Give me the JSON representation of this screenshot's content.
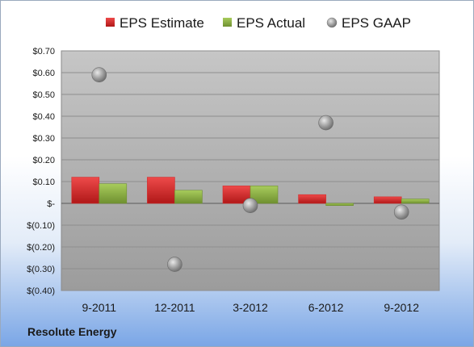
{
  "chart_data": {
    "type": "bar",
    "categories": [
      "9-2011",
      "12-2011",
      "3-2012",
      "6-2012",
      "9-2012"
    ],
    "series": [
      {
        "name": "EPS Estimate",
        "kind": "bar",
        "values": [
          0.12,
          0.12,
          0.08,
          0.04,
          0.03
        ]
      },
      {
        "name": "EPS Actual",
        "kind": "bar",
        "values": [
          0.09,
          0.06,
          0.08,
          -0.01,
          0.02
        ]
      },
      {
        "name": "EPS GAAP",
        "kind": "scatter",
        "values": [
          0.59,
          -0.28,
          -0.01,
          0.37,
          -0.04
        ]
      }
    ],
    "ylim": [
      -0.4,
      0.7
    ],
    "yticks": [
      0.7,
      0.6,
      0.5,
      0.4,
      0.3,
      0.2,
      0.1,
      0.0,
      -0.1,
      -0.2,
      -0.3,
      -0.4
    ],
    "ytick_labels": [
      "$0.70",
      "$0.60",
      "$0.50",
      "$0.40",
      "$0.30",
      "$0.20",
      "$0.10",
      "$-",
      "$(0.10)",
      "$(0.20)",
      "$(0.30)",
      "$(0.40)"
    ],
    "legend": "top",
    "grid": true,
    "colors": {
      "estimate": "#d42a2a",
      "actual": "#8cb040",
      "gaap": "#a0a0a0",
      "plot_bg": "#b3b3b3"
    }
  },
  "footer": {
    "company": "Resolute Energy"
  }
}
